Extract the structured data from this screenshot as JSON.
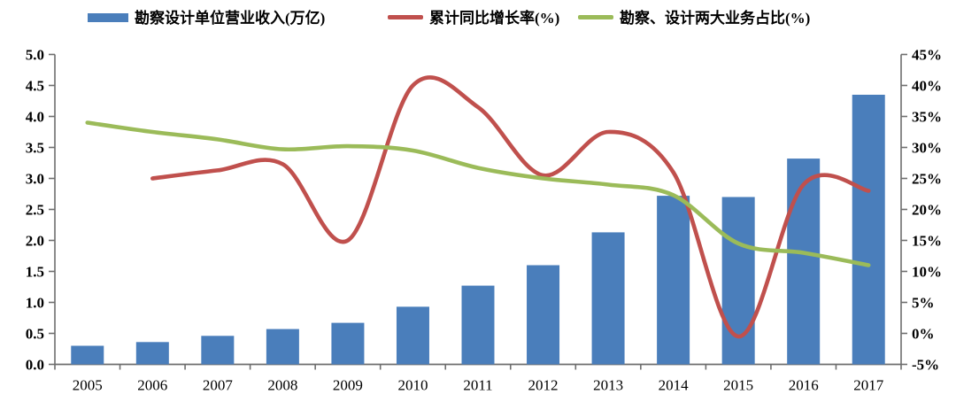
{
  "chart_data": {
    "type": "combo",
    "title": "",
    "categories": [
      "2005",
      "2006",
      "2007",
      "2008",
      "2009",
      "2010",
      "2011",
      "2012",
      "2013",
      "2014",
      "2015",
      "2016",
      "2017"
    ],
    "series": [
      {
        "name": "勘察设计单位营业收入(万亿)",
        "type": "bar",
        "axis": "left",
        "color": "#4A7EBB",
        "values": [
          0.3,
          0.36,
          0.46,
          0.57,
          0.67,
          0.93,
          1.27,
          1.6,
          2.13,
          2.72,
          2.7,
          3.32,
          4.35
        ]
      },
      {
        "name": "累计同比增长率(%)",
        "type": "line",
        "axis": "right",
        "color": "#C0504D",
        "values": [
          null,
          25.0,
          26.3,
          27.3,
          15.0,
          40.0,
          36.5,
          25.5,
          32.5,
          26.0,
          -0.5,
          24.0,
          23.0
        ]
      },
      {
        "name": "勘察、设计两大业务占比(%)",
        "type": "line",
        "axis": "right",
        "color": "#9BBB59",
        "values": [
          34.0,
          32.5,
          31.3,
          29.7,
          30.2,
          29.5,
          26.7,
          25.0,
          24.0,
          22.3,
          14.5,
          13.0,
          11.0
        ]
      }
    ],
    "left_axis": {
      "min": 0,
      "max": 5,
      "step": 0.5,
      "tick_labels": [
        "5.0",
        "4.5",
        "4.0",
        "3.5",
        "3.0",
        "2.5",
        "2.0",
        "1.5",
        "1.0",
        "0.5",
        "0.0"
      ]
    },
    "right_axis": {
      "min": -5,
      "max": 45,
      "step": 5,
      "tick_labels": [
        "45%",
        "40%",
        "35%",
        "30%",
        "25%",
        "20%",
        "15%",
        "10%",
        "5%",
        "0%",
        "-5%"
      ]
    },
    "legend_position": "top",
    "grid": false,
    "axis_line_color": "#6e6e6e"
  }
}
